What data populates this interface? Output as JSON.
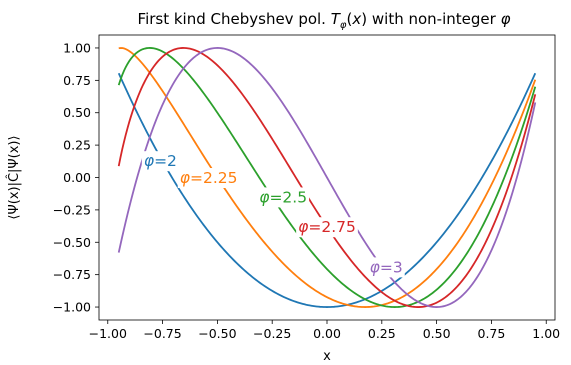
{
  "chart_data": {
    "type": "line",
    "title": "First kind Chebyshev pol. T_φ(x) with non-integer φ",
    "xlabel": "x",
    "ylabel": "⟨Ψ(x)|Ĉ|Ψ(x)⟩",
    "xlim": [
      -1.04,
      1.04
    ],
    "ylim": [
      -1.1,
      1.1
    ],
    "x_domain": [
      -0.95,
      0.95
    ],
    "xticks": [
      -1.0,
      -0.75,
      -0.5,
      -0.25,
      0.0,
      0.25,
      0.5,
      0.75,
      1.0
    ],
    "xtick_labels": [
      "−1.00",
      "−0.75",
      "−0.50",
      "−0.25",
      "0.00",
      "0.25",
      "0.50",
      "0.75",
      "1.00"
    ],
    "yticks": [
      -1.0,
      -0.75,
      -0.5,
      -0.25,
      0.0,
      0.25,
      0.5,
      0.75,
      1.0
    ],
    "ytick_labels": [
      "−1.00",
      "−0.75",
      "−0.50",
      "−0.25",
      "0.00",
      "0.25",
      "0.50",
      "0.75",
      "1.00"
    ],
    "grid": false,
    "legend": "none",
    "series": [
      {
        "name": "φ=2",
        "phi": 2.0,
        "color": "#1f77b4",
        "label_at": [
          -0.76,
          0.13
        ]
      },
      {
        "name": "φ=2.25",
        "phi": 2.25,
        "color": "#ff7f0e",
        "label_at": [
          -0.54,
          0.0
        ]
      },
      {
        "name": "φ=2.5",
        "phi": 2.5,
        "color": "#2ca02c",
        "label_at": [
          -0.2,
          -0.15
        ]
      },
      {
        "name": "φ=2.75",
        "phi": 2.75,
        "color": "#d62728",
        "label_at": [
          0.0,
          -0.38
        ]
      },
      {
        "name": "φ=3",
        "phi": 3.0,
        "color": "#9467bd",
        "label_at": [
          0.27,
          -0.69
        ]
      }
    ]
  }
}
